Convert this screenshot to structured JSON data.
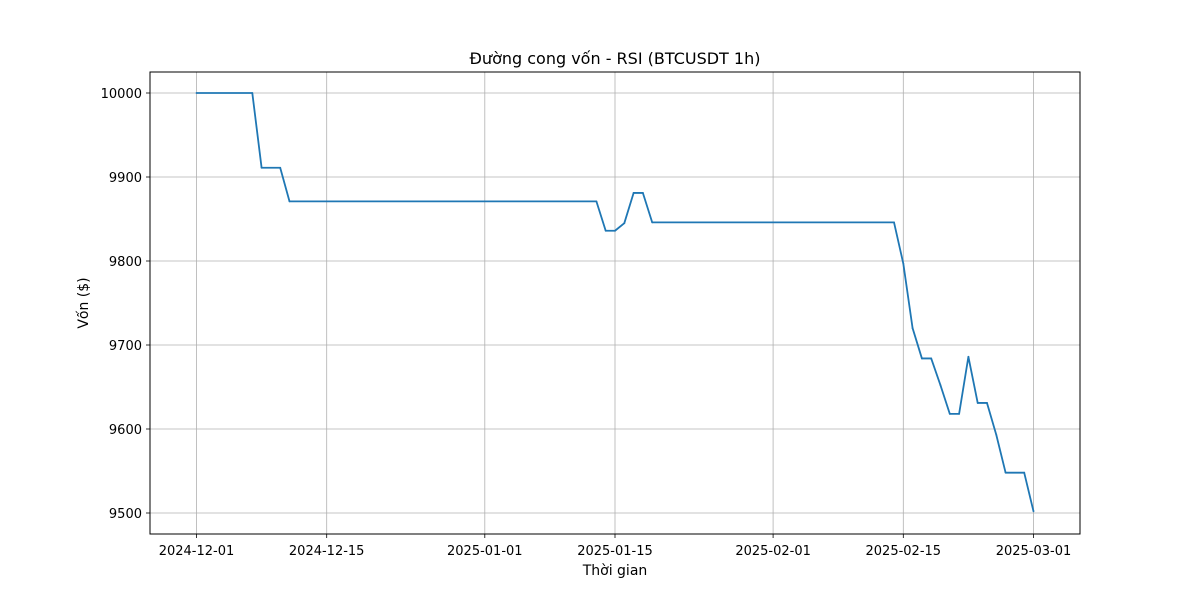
{
  "chart_data": {
    "type": "line",
    "title": "Đường cong vốn - RSI (BTCUSDT 1h)",
    "xlabel": "Thời gian",
    "ylabel": "Vốn ($)",
    "grid": true,
    "legend": "none",
    "x_ticks": [
      "2024-12-01",
      "2024-12-15",
      "2025-01-01",
      "2025-01-15",
      "2025-02-01",
      "2025-02-15",
      "2025-03-01"
    ],
    "y_ticks": [
      9500,
      9600,
      9700,
      9800,
      9900,
      10000
    ],
    "xlim": [
      "2024-11-26",
      "2025-03-06"
    ],
    "ylim": [
      9475,
      10025
    ],
    "series": [
      {
        "name": "",
        "color": "#1f77b4",
        "points": [
          [
            "2024-12-01",
            10000
          ],
          [
            "2024-12-07",
            10000
          ],
          [
            "2024-12-08",
            9911
          ],
          [
            "2024-12-10",
            9911
          ],
          [
            "2024-12-11",
            9871
          ],
          [
            "2025-01-13",
            9871
          ],
          [
            "2025-01-14",
            9836
          ],
          [
            "2025-01-15",
            9836
          ],
          [
            "2025-01-16",
            9845
          ],
          [
            "2025-01-17",
            9881
          ],
          [
            "2025-01-18",
            9881
          ],
          [
            "2025-01-19",
            9846
          ],
          [
            "2025-02-14",
            9846
          ],
          [
            "2025-02-15",
            9797
          ],
          [
            "2025-02-16",
            9720
          ],
          [
            "2025-02-17",
            9684
          ],
          [
            "2025-02-18",
            9684
          ],
          [
            "2025-02-19",
            9652
          ],
          [
            "2025-02-20",
            9618
          ],
          [
            "2025-02-21",
            9618
          ],
          [
            "2025-02-22",
            9686
          ],
          [
            "2025-02-23",
            9631
          ],
          [
            "2025-02-24",
            9631
          ],
          [
            "2025-02-25",
            9593
          ],
          [
            "2025-02-26",
            9548
          ],
          [
            "2025-02-28",
            9548
          ],
          [
            "2025-03-01",
            9502
          ]
        ]
      }
    ]
  }
}
